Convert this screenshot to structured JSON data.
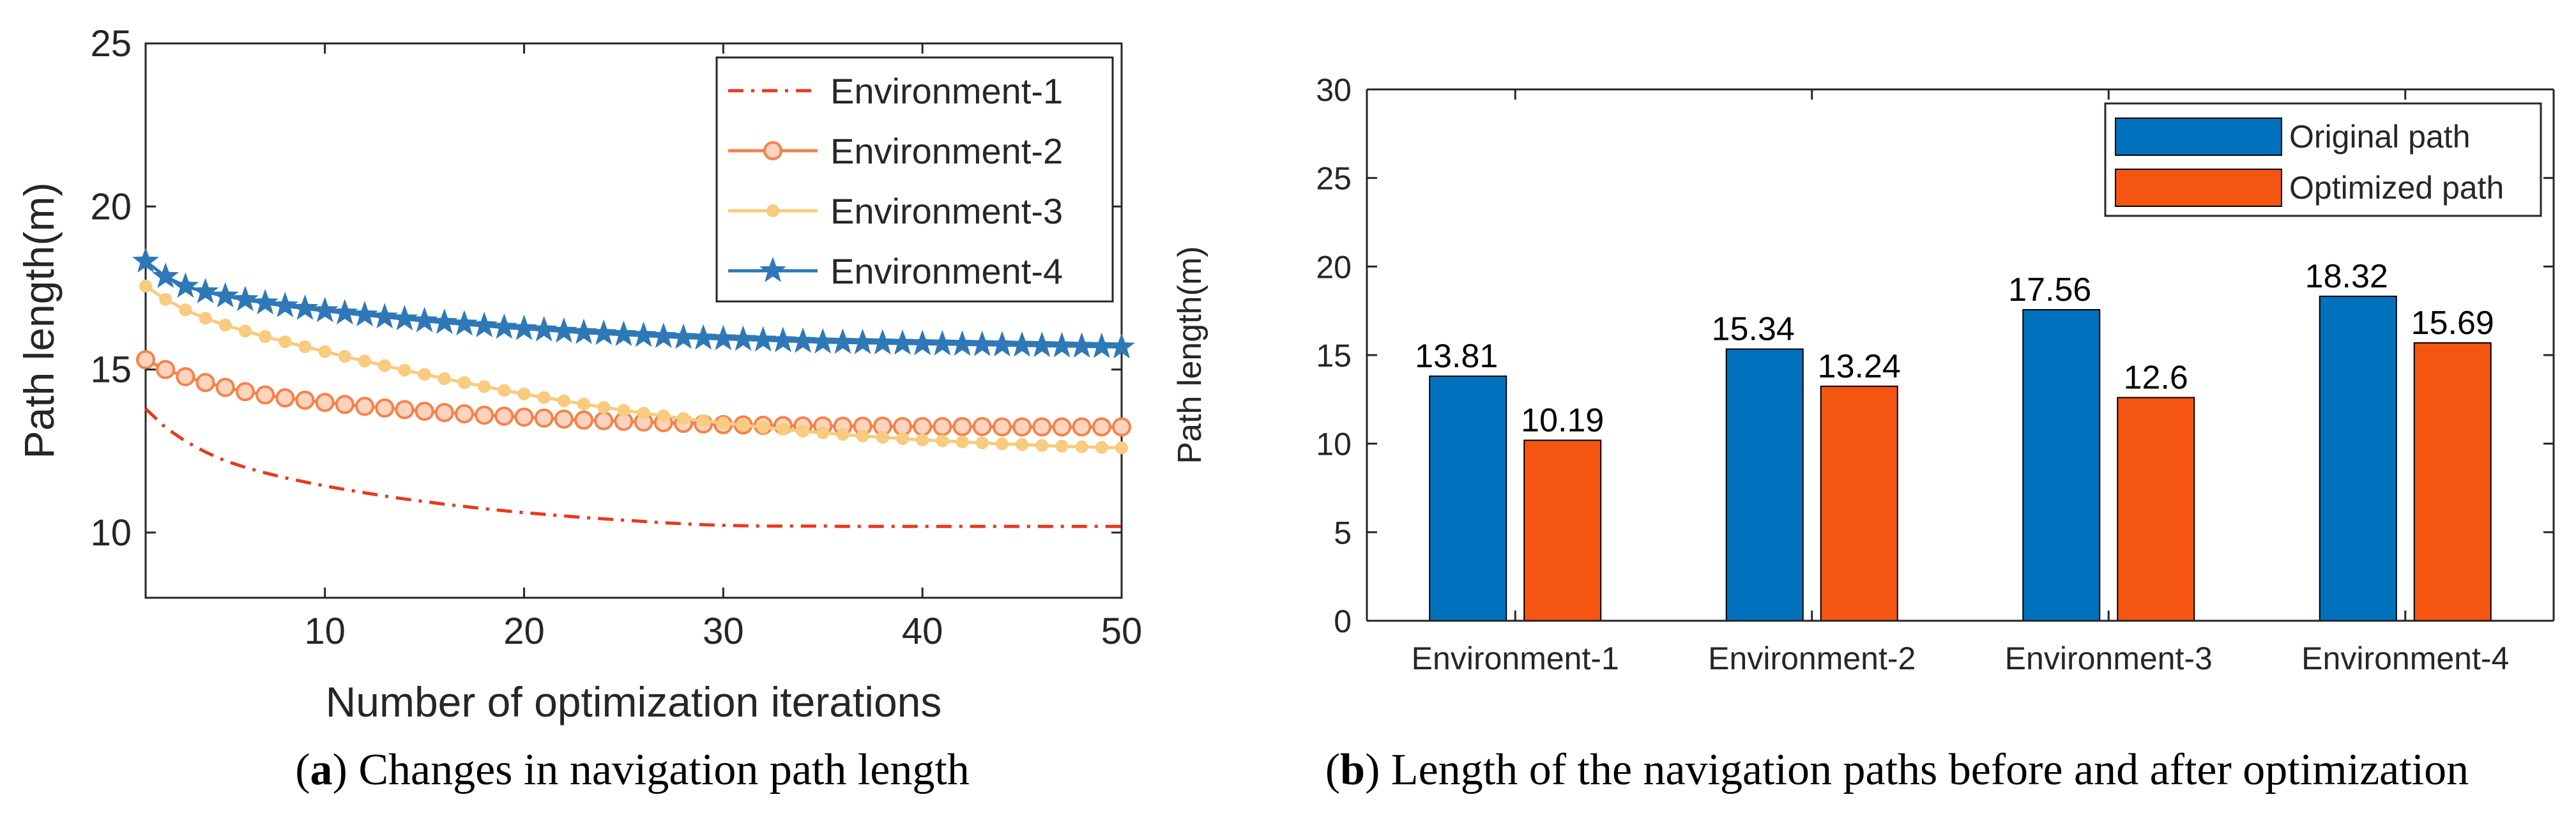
{
  "chart_data": [
    {
      "type": "line",
      "id": "a",
      "xlabel": "Number of optimization iterations",
      "ylabel": "Path length(m)",
      "xlim": [
        1,
        50
      ],
      "ylim": [
        8,
        25
      ],
      "xticks": [
        10,
        20,
        30,
        40,
        50
      ],
      "yticks": [
        10,
        15,
        20,
        25
      ],
      "grid": false,
      "legend_position": "top-right",
      "series": [
        {
          "name": "Environment-1",
          "style": "dash-dot",
          "marker": "none",
          "color": "#E8391E",
          "values": [
            13.8,
            13.22,
            12.8,
            12.47,
            12.2,
            12.0,
            11.83,
            11.68,
            11.55,
            11.43,
            11.32,
            11.22,
            11.12,
            11.03,
            10.95,
            10.87,
            10.8,
            10.73,
            10.67,
            10.61,
            10.56,
            10.51,
            10.46,
            10.42,
            10.38,
            10.34,
            10.3,
            10.27,
            10.24,
            10.22,
            10.21,
            10.2,
            10.2,
            10.2,
            10.2,
            10.19,
            10.19,
            10.19,
            10.19,
            10.19,
            10.19,
            10.19,
            10.19,
            10.19,
            10.19,
            10.19,
            10.19,
            10.19,
            10.19,
            10.19
          ]
        },
        {
          "name": "Environment-2",
          "style": "solid",
          "marker": "circle",
          "color": "#F5824A",
          "values": [
            15.3,
            15.0,
            14.78,
            14.6,
            14.45,
            14.32,
            14.22,
            14.13,
            14.06,
            13.99,
            13.93,
            13.87,
            13.82,
            13.77,
            13.72,
            13.68,
            13.64,
            13.6,
            13.57,
            13.54,
            13.51,
            13.48,
            13.45,
            13.43,
            13.41,
            13.39,
            13.37,
            13.35,
            13.33,
            13.31,
            13.3,
            13.29,
            13.28,
            13.27,
            13.27,
            13.26,
            13.26,
            13.26,
            13.25,
            13.25,
            13.25,
            13.25,
            13.25,
            13.24,
            13.24,
            13.24,
            13.24,
            13.24,
            13.24,
            13.24
          ]
        },
        {
          "name": "Environment-3",
          "style": "solid",
          "marker": "dot",
          "color": "#F8CB7E",
          "values": [
            17.56,
            17.15,
            16.83,
            16.57,
            16.36,
            16.18,
            16.01,
            15.85,
            15.7,
            15.55,
            15.4,
            15.26,
            15.12,
            14.98,
            14.85,
            14.72,
            14.6,
            14.48,
            14.36,
            14.25,
            14.14,
            14.04,
            13.94,
            13.84,
            13.75,
            13.66,
            13.58,
            13.5,
            13.43,
            13.36,
            13.29,
            13.23,
            13.17,
            13.11,
            13.06,
            13.01,
            12.96,
            12.92,
            12.88,
            12.84,
            12.81,
            12.78,
            12.75,
            12.72,
            12.7,
            12.67,
            12.65,
            12.63,
            12.61,
            12.6
          ]
        },
        {
          "name": "Environment-4",
          "style": "solid",
          "marker": "star",
          "color": "#2E78B7",
          "values": [
            18.32,
            17.85,
            17.55,
            17.38,
            17.25,
            17.14,
            17.04,
            16.95,
            16.87,
            16.8,
            16.73,
            16.67,
            16.61,
            16.55,
            16.49,
            16.44,
            16.39,
            16.34,
            16.29,
            16.25,
            16.21,
            16.17,
            16.13,
            16.1,
            16.07,
            16.04,
            16.01,
            15.98,
            15.96,
            15.94,
            15.92,
            15.9,
            15.88,
            15.86,
            15.84,
            15.83,
            15.82,
            15.81,
            15.8,
            15.79,
            15.78,
            15.77,
            15.76,
            15.75,
            15.74,
            15.73,
            15.72,
            15.71,
            15.7,
            15.69
          ]
        }
      ]
    },
    {
      "type": "bar",
      "id": "b",
      "categories": [
        "Environment-1",
        "Environment-2",
        "Environment-3",
        "Environment-4"
      ],
      "ylabel": "Path length(m)",
      "xlabel": "",
      "ylim": [
        0,
        30
      ],
      "yticks": [
        0,
        5,
        10,
        15,
        20,
        25,
        30
      ],
      "grid": false,
      "legend_position": "top-right",
      "series": [
        {
          "name": "Original path",
          "color": "#0072BD",
          "values": [
            13.81,
            15.34,
            17.56,
            18.32
          ]
        },
        {
          "name": "Optimized path",
          "color": "#F45511",
          "values": [
            10.19,
            13.24,
            12.6,
            15.69
          ]
        }
      ]
    }
  ],
  "captions": [
    {
      "label": "a",
      "open": "(",
      "close": ")",
      "text": " Changes in navigation path length"
    },
    {
      "label": "b",
      "open": "(",
      "close": ")",
      "text": " Length of the navigation paths before and after optimization"
    }
  ]
}
